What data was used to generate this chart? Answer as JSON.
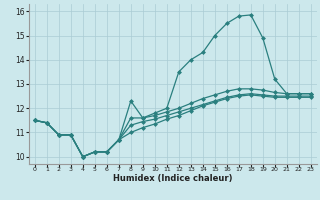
{
  "xlabel": "Humidex (Indice chaleur)",
  "bg_color": "#cce8ec",
  "line_color": "#2a7f7f",
  "grid_color": "#aaccd4",
  "xlim": [
    -0.5,
    23.5
  ],
  "ylim": [
    9.7,
    16.3
  ],
  "xticks": [
    0,
    1,
    2,
    3,
    4,
    5,
    6,
    7,
    8,
    9,
    10,
    11,
    12,
    13,
    14,
    15,
    16,
    17,
    18,
    19,
    20,
    21,
    22,
    23
  ],
  "yticks": [
    10,
    11,
    12,
    13,
    14,
    15,
    16
  ],
  "line1_x": [
    0,
    1,
    2,
    3,
    4,
    5,
    6,
    7,
    8,
    9,
    10,
    11,
    12,
    13,
    14,
    15,
    16,
    17,
    18,
    19,
    20,
    21,
    22,
    23
  ],
  "line1_y": [
    11.5,
    11.4,
    10.9,
    10.9,
    10.0,
    10.2,
    10.2,
    10.7,
    12.3,
    11.6,
    11.8,
    12.0,
    13.5,
    14.0,
    14.3,
    15.0,
    15.5,
    15.8,
    15.85,
    14.9,
    13.2,
    12.6,
    12.6,
    12.6
  ],
  "line2_x": [
    0,
    1,
    2,
    3,
    4,
    5,
    6,
    7,
    8,
    9,
    10,
    11,
    12,
    13,
    14,
    15,
    16,
    17,
    18,
    19,
    20,
    21,
    22,
    23
  ],
  "line2_y": [
    11.5,
    11.4,
    10.9,
    10.9,
    10.0,
    10.2,
    10.2,
    10.7,
    11.6,
    11.6,
    11.7,
    11.85,
    12.0,
    12.2,
    12.4,
    12.55,
    12.7,
    12.8,
    12.8,
    12.75,
    12.65,
    12.6,
    12.6,
    12.6
  ],
  "line3_x": [
    0,
    1,
    2,
    3,
    4,
    5,
    6,
    7,
    8,
    9,
    10,
    11,
    12,
    13,
    14,
    15,
    16,
    17,
    18,
    19,
    20,
    21,
    22,
    23
  ],
  "line3_y": [
    11.5,
    11.4,
    10.9,
    10.9,
    10.0,
    10.2,
    10.2,
    10.7,
    11.3,
    11.45,
    11.55,
    11.7,
    11.85,
    12.0,
    12.15,
    12.3,
    12.45,
    12.55,
    12.6,
    12.55,
    12.5,
    12.5,
    12.5,
    12.5
  ],
  "line4_x": [
    0,
    1,
    2,
    3,
    4,
    5,
    6,
    7,
    8,
    9,
    10,
    11,
    12,
    13,
    14,
    15,
    16,
    17,
    18,
    19,
    20,
    21,
    22,
    23
  ],
  "line4_y": [
    11.5,
    11.4,
    10.9,
    10.9,
    10.0,
    10.2,
    10.2,
    10.7,
    11.0,
    11.2,
    11.35,
    11.55,
    11.7,
    11.9,
    12.1,
    12.25,
    12.4,
    12.5,
    12.55,
    12.5,
    12.45,
    12.45,
    12.45,
    12.45
  ]
}
